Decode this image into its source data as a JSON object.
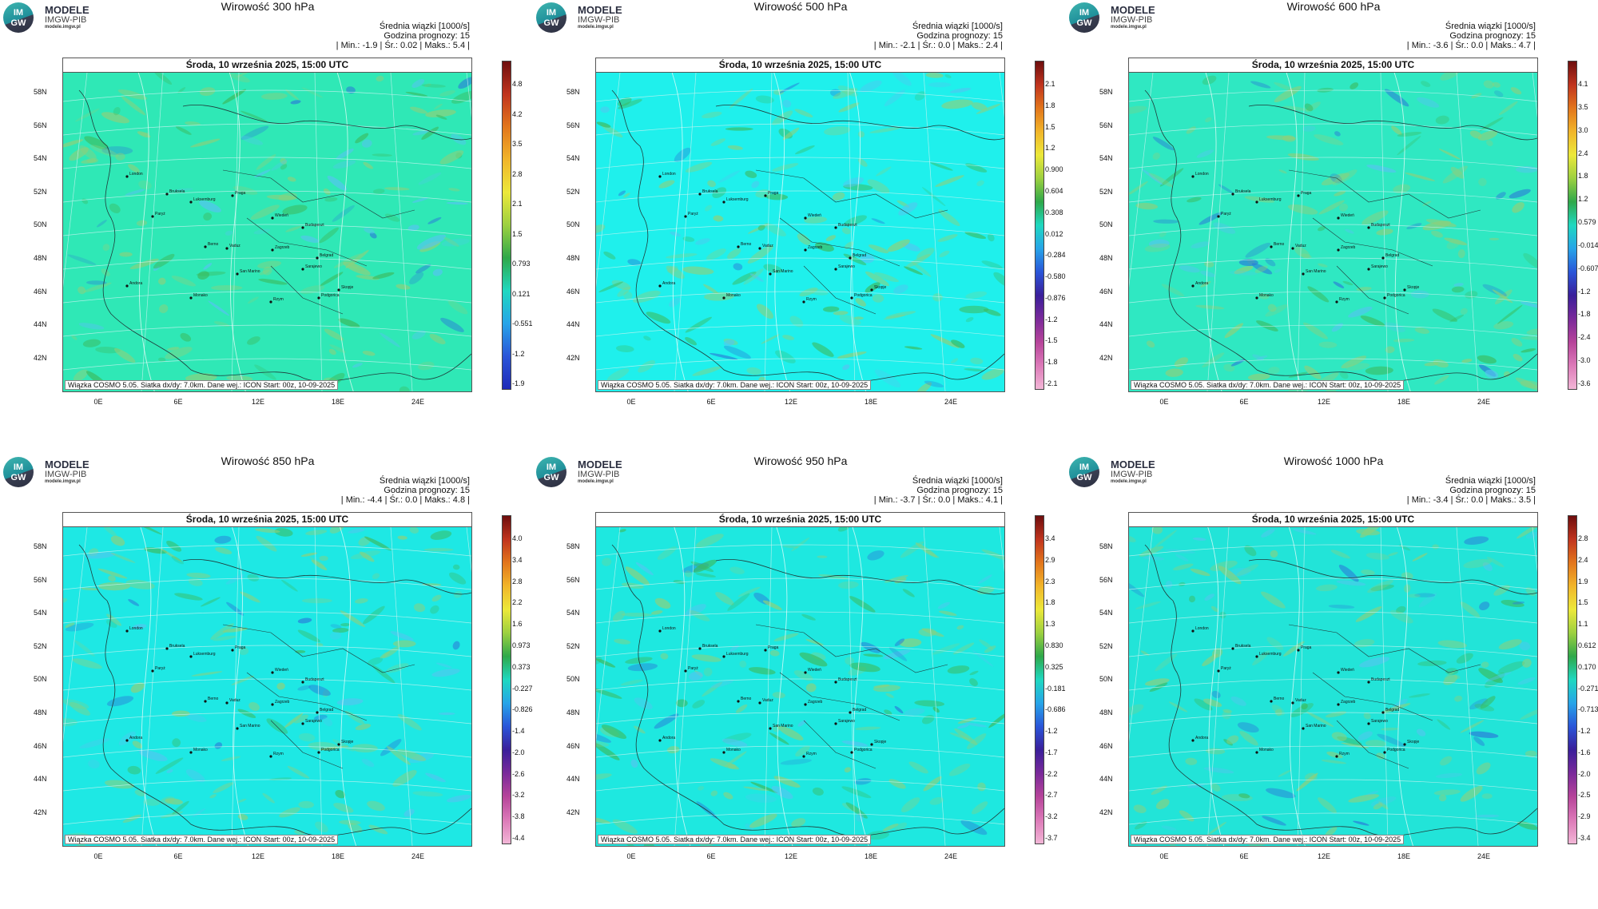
{
  "logo": {
    "circle_top": "IM",
    "circle_bottom": "GW",
    "title": "MODELE",
    "subtitle": "IMGW-PIB",
    "url": "modele.imgw.pl"
  },
  "panels": [
    {
      "title": "Wirowość 300 hPa",
      "stats_l1": "Średnia wiązki [1000/s]",
      "stats_l2": "Godzina prognozy: 15",
      "stats_l3": "| Min.:     -1.9 | Śr.:    0.02 | Maks.:       5.4 |",
      "date": "Środa, 10 września 2025, 15:00 UTC",
      "colorbar": [
        "4.8",
        "4.2",
        "3.5",
        "2.8",
        "2.1",
        "1.5",
        "0.793",
        "0.121",
        "-0.551",
        "-1.2",
        "-1.9"
      ],
      "base_color": "#2fe8b6"
    },
    {
      "title": "Wirowość 500 hPa",
      "stats_l1": "Średnia wiązki [1000/s]",
      "stats_l2": "Godzina prognozy: 15",
      "stats_l3": "| Min.:     -2.1 | Śr.:     0.0 | Maks.:       2.4 |",
      "date": "Środa, 10 września 2025, 15:00 UTC",
      "colorbar": [
        "2.1",
        "1.8",
        "1.5",
        "1.2",
        "0.900",
        "0.604",
        "0.308",
        "0.012",
        "-0.284",
        "-0.580",
        "-0.876",
        "-1.2",
        "-1.5",
        "-1.8",
        "-2.1"
      ],
      "base_color": "#1ff0ec"
    },
    {
      "title": "Wirowość 600 hPa",
      "stats_l1": "Średnia wiązki [1000/s]",
      "stats_l2": "Godzina prognozy: 15",
      "stats_l3": "| Min.:     -3.6 | Śr.:     0.0 | Maks.:       4.7 |",
      "date": "Środa, 10 września 2025, 15:00 UTC",
      "colorbar": [
        "4.1",
        "3.5",
        "3.0",
        "2.4",
        "1.8",
        "1.2",
        "0.579",
        "-0.014",
        "-0.607",
        "-1.2",
        "-1.8",
        "-2.4",
        "-3.0",
        "-3.6"
      ],
      "base_color": "#2fe8c2"
    },
    {
      "title": "Wirowość 850 hPa",
      "stats_l1": "Średnia wiązki [1000/s]",
      "stats_l2": "Godzina prognozy: 15",
      "stats_l3": "| Min.:     -4.4 | Śr.:     0.0 | Maks.:       4.8 |",
      "date": "Środa, 10 września 2025, 15:00 UTC",
      "colorbar": [
        "4.0",
        "3.4",
        "2.8",
        "2.2",
        "1.6",
        "0.973",
        "0.373",
        "-0.227",
        "-0.826",
        "-1.4",
        "-2.0",
        "-2.6",
        "-3.2",
        "-3.8",
        "-4.4"
      ],
      "base_color": "#1ee8e4"
    },
    {
      "title": "Wirowość 950 hPa",
      "stats_l1": "Średnia wiązki [1000/s]",
      "stats_l2": "Godzina prognozy: 15",
      "stats_l3": "| Min.:     -3.7 | Śr.:     0.0 | Maks.:       4.1 |",
      "date": "Środa, 10 września 2025, 15:00 UTC",
      "colorbar": [
        "3.4",
        "2.9",
        "2.3",
        "1.8",
        "1.3",
        "0.830",
        "0.325",
        "-0.181",
        "-0.686",
        "-1.2",
        "-1.7",
        "-2.2",
        "-2.7",
        "-3.2",
        "-3.7"
      ],
      "base_color": "#1ee8e0"
    },
    {
      "title": "Wirowość 1000 hPa",
      "stats_l1": "Średnia wiązki [1000/s]",
      "stats_l2": "Godzina prognozy: 15",
      "stats_l3": "| Min.:     -3.4 | Śr.:     0.0 | Maks.:       3.5 |",
      "date": "Środa, 10 września 2025, 15:00 UTC",
      "colorbar": [
        "2.8",
        "2.4",
        "1.9",
        "1.5",
        "1.1",
        "0.612",
        "0.170",
        "-0.271",
        "-0.713",
        "-1.2",
        "-1.6",
        "-2.0",
        "-2.5",
        "-2.9",
        "-3.4"
      ],
      "base_color": "#22e4d8"
    }
  ],
  "lat_labels": [
    "58N",
    "56N",
    "54N",
    "52N",
    "50N",
    "48N",
    "46N",
    "44N",
    "42N"
  ],
  "lon_labels": [
    "0E",
    "6E",
    "12E",
    "18E",
    "24E"
  ],
  "cities": [
    "London",
    "Bruksela",
    "Paryż",
    "Luksemburg",
    "Praga",
    "Wiedeń",
    "Budapeszt",
    "Berno",
    "Vaduz",
    "Zagrzeb",
    "Belgrad",
    "San Marino",
    "Sarajewo",
    "Podgorica",
    "Andora",
    "Monako",
    "Rzym",
    "Skopje"
  ],
  "footer": "Wiązka  COSMO 5.05. Siatka dx/dy: 7.0km. Dane wej.: ICON Start: 00z, 10-09-2025"
}
